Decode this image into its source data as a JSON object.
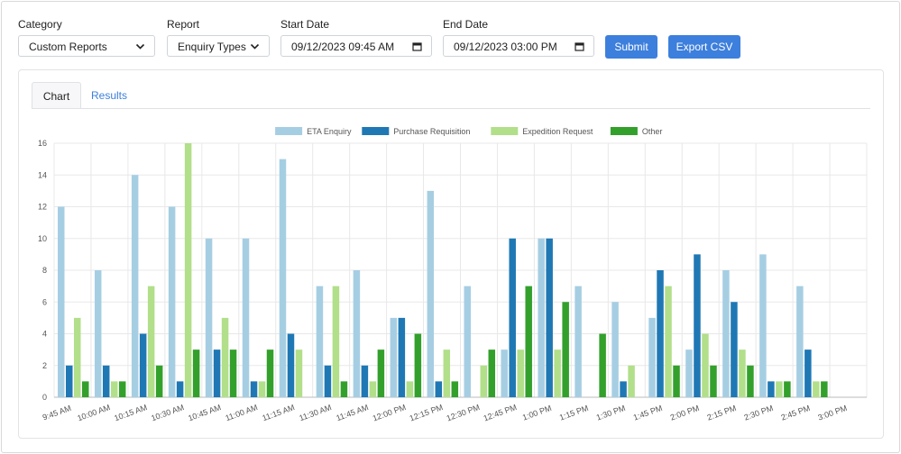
{
  "filters": {
    "category": {
      "label": "Category",
      "value": "Custom Reports"
    },
    "report": {
      "label": "Report",
      "value": "Enquiry Types"
    },
    "start_date": {
      "label": "Start Date",
      "value": "09/12/2023 09:45  AM"
    },
    "end_date": {
      "label": "End Date",
      "value": "09/12/2023 03:00  PM"
    }
  },
  "buttons": {
    "submit": "Submit",
    "export": "Export CSV"
  },
  "tabs": [
    {
      "label": "Chart",
      "active": true
    },
    {
      "label": "Results",
      "active": false
    }
  ],
  "icons": {
    "dropdown": "chevron-down-icon",
    "calendar": "calendar-icon"
  },
  "colors": {
    "accent": "#3d7fdc"
  },
  "chart_data": {
    "type": "bar",
    "ylim": [
      0,
      16
    ],
    "yticks": [
      0,
      2,
      4,
      6,
      8,
      10,
      12,
      14,
      16
    ],
    "legend_position": "top",
    "grid": true,
    "categories": [
      "9:45 AM",
      "10:00 AM",
      "10:15 AM",
      "10:30 AM",
      "10:45 AM",
      "11:00 AM",
      "11:15 AM",
      "11:30 AM",
      "11:45 AM",
      "12:00 PM",
      "12:15 PM",
      "12:30 PM",
      "12:45 PM",
      "1:00 PM",
      "1:15 PM",
      "1:30 PM",
      "1:45 PM",
      "2:00 PM",
      "2:15 PM",
      "2:30 PM",
      "2:45 PM",
      "3:00 PM"
    ],
    "series": [
      {
        "name": "ETA Enquiry",
        "color": "#a6cee3",
        "values": [
          12,
          8,
          14,
          12,
          10,
          10,
          15,
          7,
          8,
          5,
          13,
          7,
          3,
          10,
          7,
          6,
          5,
          3,
          8,
          9,
          7,
          0
        ]
      },
      {
        "name": "Purchase Requisition",
        "color": "#1f78b4",
        "values": [
          2,
          2,
          4,
          1,
          3,
          1,
          4,
          2,
          2,
          5,
          1,
          0,
          10,
          10,
          0,
          1,
          8,
          9,
          6,
          1,
          3,
          0
        ]
      },
      {
        "name": "Expedition Request",
        "color": "#b2df8a",
        "values": [
          5,
          1,
          7,
          16,
          5,
          1,
          3,
          7,
          1,
          1,
          3,
          2,
          3,
          3,
          0,
          2,
          7,
          4,
          3,
          1,
          1,
          0
        ]
      },
      {
        "name": "Other",
        "color": "#33a02c",
        "values": [
          1,
          1,
          2,
          3,
          3,
          3,
          0,
          1,
          3,
          4,
          1,
          3,
          7,
          6,
          4,
          0,
          2,
          2,
          2,
          1,
          1,
          0
        ]
      }
    ]
  }
}
